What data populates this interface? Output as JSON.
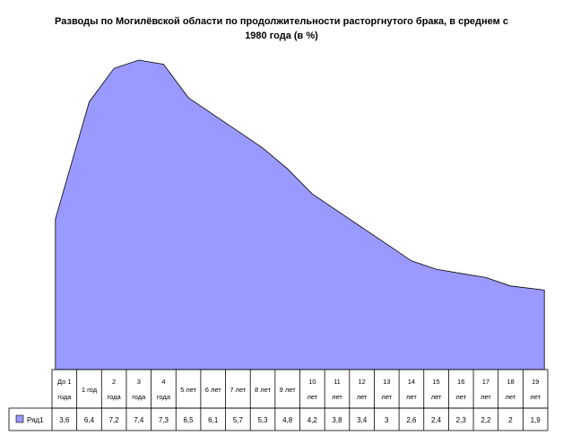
{
  "chart_data": {
    "type": "area",
    "title": "Разводы по Могилёвской области по продолжительности расторгнутого брака, в среднем с 1980 года (в %)",
    "categories": [
      [
        "До 1",
        "года"
      ],
      [
        "1 год"
      ],
      [
        "2",
        "года"
      ],
      [
        "3",
        "года"
      ],
      [
        "4",
        "года"
      ],
      [
        "5 лет"
      ],
      [
        "6 лет"
      ],
      [
        "7 лет"
      ],
      [
        "8 лет"
      ],
      [
        "9 лет"
      ],
      [
        "10",
        "лет"
      ],
      [
        "11",
        "лет"
      ],
      [
        "12",
        "лет"
      ],
      [
        "13",
        "лет"
      ],
      [
        "14",
        "лет"
      ],
      [
        "15",
        "лет"
      ],
      [
        "16",
        "лет"
      ],
      [
        "17",
        "лет"
      ],
      [
        "18",
        "лет"
      ],
      [
        "19",
        "лет"
      ]
    ],
    "series": [
      {
        "name": "Ряд1",
        "color": "#9999ff",
        "values": [
          3.6,
          6.4,
          7.2,
          7.4,
          7.3,
          6.5,
          6.1,
          5.7,
          5.3,
          4.8,
          4.2,
          3.8,
          3.4,
          3,
          2.6,
          2.4,
          2.3,
          2.2,
          2,
          1.9
        ],
        "labels": [
          "3,6",
          "6,4",
          "7,2",
          "7,4",
          "7,3",
          "6,5",
          "6,1",
          "5,7",
          "5,3",
          "4,8",
          "4,2",
          "3,8",
          "3,4",
          "3",
          "2,6",
          "2,4",
          "2,3",
          "2,2",
          "2",
          "1,9"
        ]
      }
    ],
    "ylim": [
      0,
      8
    ],
    "legend": "data-table"
  }
}
